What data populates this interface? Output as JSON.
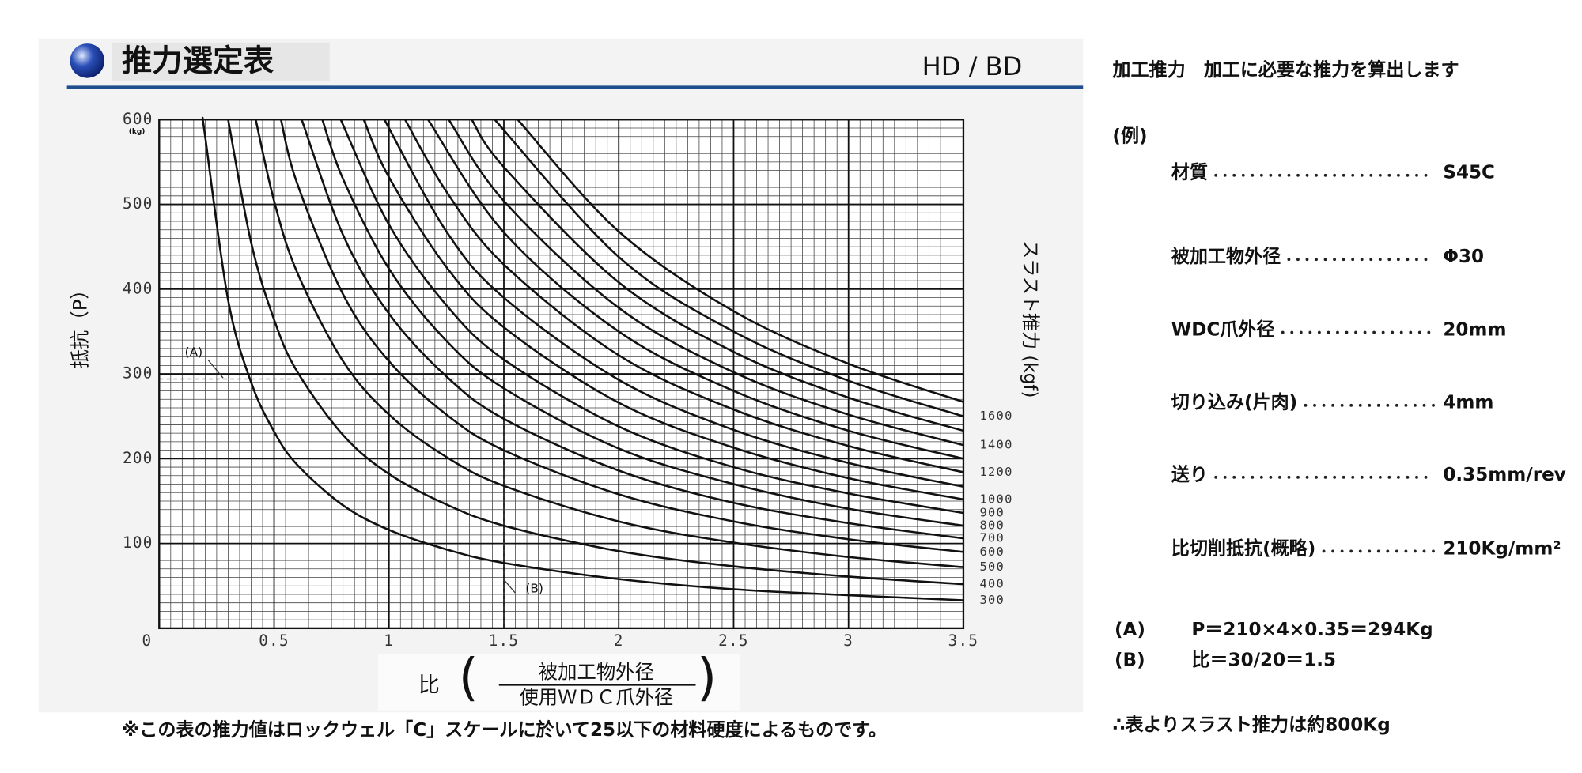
{
  "header": {
    "title": "推力選定表",
    "model": "HD / BD"
  },
  "chart_data": {
    "type": "line",
    "xlabel": {
      "prefix": "比",
      "numerator": "被加工物外径",
      "denominator": "使用ＷＤＣ爪外径"
    },
    "ylabel": "抵抗（P）",
    "y_unit": "(kg)",
    "y2label": "スラスト推力 (kgf)",
    "xlim": [
      0,
      3.5
    ],
    "ylim": [
      0,
      600
    ],
    "xticks": [
      0,
      0.5,
      1,
      1.5,
      2,
      2.5,
      3,
      3.5
    ],
    "yticks": [
      100,
      200,
      300,
      400,
      500,
      600
    ],
    "grid": true,
    "minor_grid": {
      "x": 0.05,
      "y": 10
    },
    "color": "#111111",
    "series": [
      {
        "name": "300",
        "x": [
          0.19,
          0.2,
          0.3,
          0.4,
          0.5,
          0.6,
          0.8,
          1,
          1.25,
          1.5,
          2,
          2.5,
          3,
          3.5
        ],
        "values": [
          600,
          580,
          387,
          290,
          232,
          193,
          145,
          116,
          93,
          77,
          58,
          46,
          39,
          33
        ]
      },
      {
        "name": "400",
        "x": [
          0.3,
          0.4,
          0.5,
          0.6,
          0.8,
          1,
          1.25,
          1.5,
          2,
          2.5,
          3,
          3.5
        ],
        "values": [
          600,
          455,
          364,
          303,
          228,
          182,
          146,
          121,
          91,
          73,
          61,
          52
        ]
      },
      {
        "name": "500",
        "x": [
          0.42,
          0.5,
          0.6,
          0.8,
          1,
          1.25,
          1.5,
          2,
          2.5,
          3,
          3.5
        ],
        "values": [
          600,
          504,
          420,
          315,
          252,
          202,
          168,
          126,
          101,
          84,
          72
        ]
      },
      {
        "name": "600",
        "x": [
          0.53,
          0.6,
          0.8,
          1,
          1.25,
          1.5,
          2,
          2.5,
          3,
          3.5
        ],
        "values": [
          600,
          525,
          394,
          315,
          252,
          210,
          158,
          126,
          105,
          90
        ]
      },
      {
        "name": "700",
        "x": [
          0.62,
          0.8,
          1,
          1.25,
          1.5,
          2,
          2.5,
          3,
          3.5
        ],
        "values": [
          600,
          464,
          371,
          297,
          247,
          186,
          148,
          124,
          106
        ]
      },
      {
        "name": "800",
        "x": [
          0.71,
          0.8,
          1,
          1.25,
          1.5,
          2,
          2.5,
          3,
          3.5
        ],
        "values": [
          600,
          530,
          424,
          339,
          283,
          212,
          170,
          141,
          121
        ]
      },
      {
        "name": "900",
        "x": [
          0.79,
          1,
          1.25,
          1.5,
          2,
          2.5,
          3,
          3.5
        ],
        "values": [
          600,
          476,
          381,
          317,
          238,
          190,
          159,
          136
        ]
      },
      {
        "name": "1000",
        "x": [
          0.89,
          1,
          1.25,
          1.5,
          2,
          2.5,
          3,
          3.5
        ],
        "values": [
          600,
          532,
          426,
          355,
          266,
          213,
          177,
          152
        ]
      },
      {
        "name": null,
        "x": [
          0.98,
          1.25,
          1.5,
          2,
          2.5,
          3,
          3.5
        ],
        "values": [
          600,
          468,
          390,
          293,
          234,
          195,
          167
        ]
      },
      {
        "name": "1200",
        "x": [
          1.07,
          1.25,
          1.5,
          2,
          2.5,
          3,
          3.5
        ],
        "values": [
          600,
          515,
          429,
          322,
          258,
          215,
          184
        ]
      },
      {
        "name": null,
        "x": [
          1.17,
          1.5,
          2,
          2.5,
          3,
          3.5
        ],
        "values": [
          600,
          467,
          350,
          280,
          233,
          200
        ]
      },
      {
        "name": "1400",
        "x": [
          1.26,
          1.5,
          2,
          2.5,
          3,
          3.5
        ],
        "values": [
          600,
          504,
          378,
          302,
          252,
          216
        ]
      },
      {
        "name": null,
        "x": [
          1.36,
          1.5,
          2,
          2.5,
          3,
          3.5
        ],
        "values": [
          600,
          544,
          408,
          326,
          272,
          233
        ]
      },
      {
        "name": "1600",
        "x": [
          1.46,
          2,
          2.5,
          3,
          3.5
        ],
        "values": [
          600,
          438,
          350,
          292,
          250
        ]
      },
      {
        "name": null,
        "x": [
          1.56,
          2,
          2.5,
          3,
          3.5
        ],
        "values": [
          600,
          468,
          374,
          312,
          267
        ]
      }
    ],
    "example_point": {
      "x": 1.5,
      "y": 294,
      "labels": [
        "(A)",
        "(B)"
      ]
    }
  },
  "footnote": "※この表の推力値はロックウェル「C」スケールに於いて25以下の材料硬度によるものです。",
  "panel": {
    "heading": "加工推力　加工に必要な推力を算出します",
    "example_label": "(例)",
    "items": [
      {
        "label": "材質",
        "value": "S45C"
      },
      {
        "label": "被加工物外径",
        "value": "Φ30"
      },
      {
        "label": "WDC爪外径",
        "value": "20mm"
      },
      {
        "label": "切り込み(片肉)",
        "value": "4mm"
      },
      {
        "label": "送り",
        "value": "0.35mm/rev"
      },
      {
        "label": "比切削抵抗(概略)",
        "value": "210Kg/mm²"
      }
    ],
    "results": [
      {
        "tag": "(A)",
        "text": "P＝210×4×0.35＝294Kg"
      },
      {
        "tag": "(B)",
        "text": "比＝30/20＝1.5"
      }
    ],
    "conclusion": "∴表よりスラスト推力は約800Kg"
  }
}
